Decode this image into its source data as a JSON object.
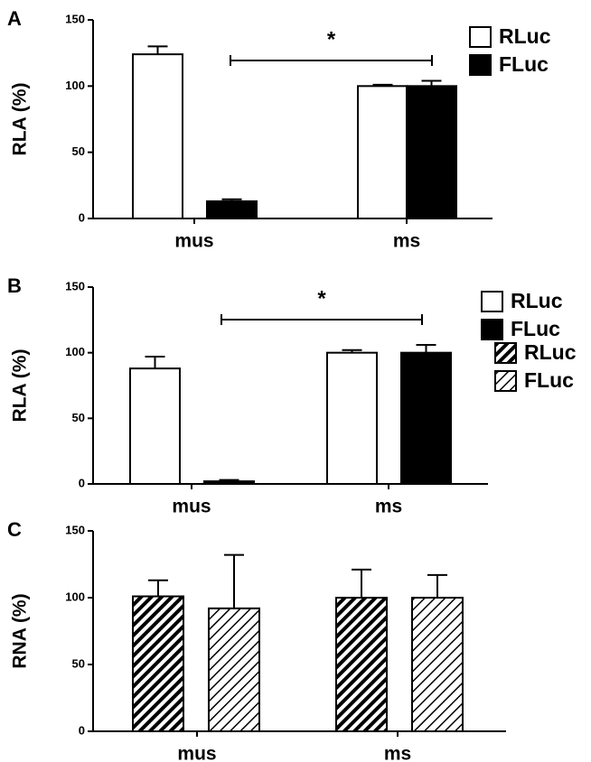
{
  "chart_data": [
    {
      "type": "bar",
      "panel": "A",
      "ylabel": "RLA (%)",
      "categories": [
        "mus",
        "ms"
      ],
      "series": [
        {
          "name": "RLuc",
          "color": "#ffffff",
          "values": [
            124,
            100
          ],
          "errors": [
            6,
            1
          ]
        },
        {
          "name": "FLuc",
          "color": "#000000",
          "values": [
            13,
            100
          ],
          "errors": [
            1.5,
            4
          ]
        }
      ],
      "ylim": [
        0,
        150
      ],
      "yticks": [
        0,
        50,
        100,
        150
      ],
      "annotation": "*"
    },
    {
      "type": "bar",
      "panel": "B",
      "ylabel": "RLA (%)",
      "categories": [
        "mus",
        "ms"
      ],
      "series": [
        {
          "name": "RLuc",
          "color": "#ffffff",
          "values": [
            88,
            100
          ],
          "errors": [
            9,
            2
          ]
        },
        {
          "name": "FLuc",
          "color": "#000000",
          "values": [
            2,
            100
          ],
          "errors": [
            1,
            6
          ]
        }
      ],
      "ylim": [
        0,
        150
      ],
      "yticks": [
        0,
        50,
        100,
        150
      ],
      "annotation": "*"
    },
    {
      "type": "bar",
      "panel": "C",
      "ylabel": "RNA (%)",
      "categories": [
        "mus",
        "ms"
      ],
      "series": [
        {
          "name": "RLuc",
          "pattern": "hatch-dense",
          "values": [
            101,
            100
          ],
          "errors": [
            12,
            21
          ]
        },
        {
          "name": "FLuc",
          "pattern": "hatch-sparse",
          "values": [
            92,
            100
          ],
          "errors": [
            40,
            17
          ]
        }
      ],
      "ylim": [
        0,
        150
      ],
      "yticks": [
        0,
        50,
        100,
        150
      ]
    }
  ]
}
